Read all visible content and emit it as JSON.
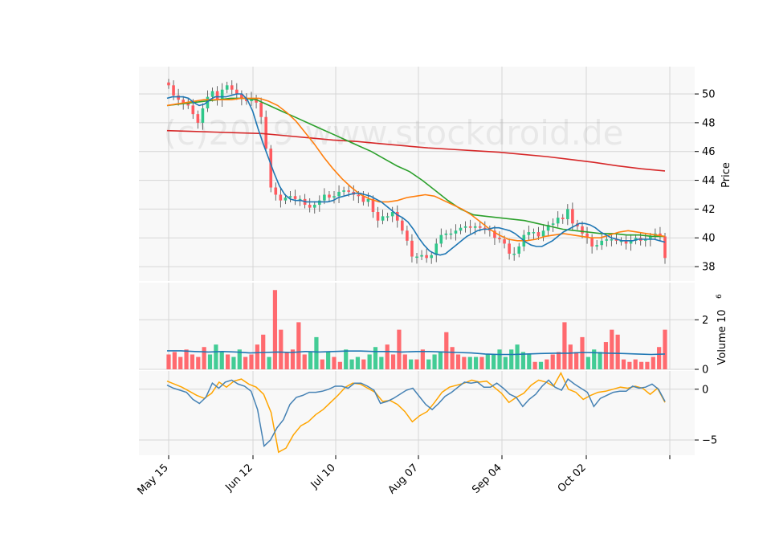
{
  "watermark": "(c)2019 www.stockdroid.de",
  "chart_data": {
    "type": "candlestick",
    "colors": {
      "up": "#2fc78a",
      "down": "#ff5a5f",
      "sma_fast": "#1f77b4",
      "sma_mid": "#ff7f0e",
      "sma_slow": "#2ca02c",
      "sma_long": "#d62728",
      "vol_avg": "#1f77b4",
      "osc_a": "#4682b4",
      "osc_b": "#ffa500"
    },
    "x_ticks": [
      "May 15",
      "Jun 12",
      "Jul 10",
      "Aug 07",
      "Sep 04",
      "Oct 02",
      ""
    ],
    "price_panel": {
      "ylabel": "Price",
      "ylim": [
        37.0,
        51.9
      ],
      "ticks": [
        38,
        40,
        42,
        44,
        46,
        48,
        50
      ]
    },
    "volume_panel": {
      "ylabel": "Volume",
      "exponent": "6",
      "ylim": [
        0,
        3.5
      ],
      "ticks": [
        0,
        2
      ]
    },
    "osc_panel": {
      "ylim": [
        -6.5,
        1.8
      ],
      "ticks": [
        -5,
        0
      ]
    },
    "candles_close": [
      50.6,
      49.9,
      49.6,
      49.4,
      49.2,
      48.6,
      48.0,
      49.0,
      49.8,
      50.2,
      49.6,
      50.3,
      50.6,
      50.3,
      50.0,
      49.7,
      49.5,
      49.7,
      49.4,
      48.4,
      46.2,
      43.5,
      43.0,
      42.6,
      42.8,
      42.9,
      42.7,
      42.7,
      42.3,
      42.1,
      42.3,
      42.6,
      43.0,
      42.8,
      42.9,
      43.2,
      43.3,
      43.2,
      43.0,
      42.9,
      42.5,
      42.7,
      41.8,
      41.2,
      41.5,
      41.5,
      41.8,
      41.2,
      40.5,
      39.8,
      38.7,
      38.7,
      38.8,
      38.6,
      38.8,
      39.6,
      40.2,
      40.3,
      40.3,
      40.5,
      40.7,
      40.8,
      40.7,
      40.8,
      40.7,
      40.6,
      40.5,
      40.0,
      39.9,
      39.6,
      38.9,
      38.9,
      39.4,
      40.2,
      40.4,
      40.4,
      40.1,
      40.5,
      40.9,
      41.0,
      41.4,
      41.3,
      42.0,
      41.0,
      40.8,
      40.3,
      40.0,
      39.4,
      39.5,
      39.8,
      39.9,
      39.9,
      39.8,
      39.8,
      39.6,
      39.8,
      40.0,
      39.8,
      39.9,
      40.1,
      40.3,
      40.1,
      38.6
    ],
    "sma_fast": [
      49.7,
      49.8,
      49.8,
      49.8,
      49.7,
      49.4,
      49.2,
      49.3,
      49.6,
      49.8,
      49.8,
      49.8,
      49.9,
      50.0,
      50.0,
      49.6,
      48.8,
      47.6,
      46.5,
      45.5,
      44.5,
      43.6,
      43.0,
      42.7,
      42.6,
      42.6,
      42.5,
      42.5,
      42.5,
      42.5,
      42.5,
      42.6,
      42.8,
      42.9,
      43.0,
      43.1,
      43.1,
      43.0,
      42.9,
      42.7,
      42.5,
      42.2,
      41.9,
      41.6,
      41.4,
      41.1,
      40.6,
      40.0,
      39.5,
      39.1,
      38.9,
      38.8,
      38.9,
      39.2,
      39.5,
      39.8,
      40.1,
      40.3,
      40.5,
      40.6,
      40.6,
      40.7,
      40.7,
      40.6,
      40.5,
      40.3,
      40.0,
      39.7,
      39.5,
      39.4,
      39.4,
      39.6,
      39.8,
      40.1,
      40.4,
      40.6,
      40.8,
      41.0,
      41.0,
      40.9,
      40.7,
      40.4,
      40.2,
      40.0,
      39.9,
      39.8,
      39.8,
      39.8,
      39.9,
      39.9,
      39.9,
      39.9,
      39.8,
      39.7
    ],
    "sma_mid": [
      49.2,
      49.3,
      49.4,
      49.5,
      49.6,
      49.6,
      49.6,
      49.6,
      49.7,
      49.7,
      49.7,
      49.5,
      49.2,
      48.7,
      48.1,
      47.3,
      46.5,
      45.6,
      44.8,
      44.1,
      43.5,
      43.0,
      42.7,
      42.5,
      42.5,
      42.6,
      42.8,
      42.9,
      43.0,
      42.9,
      42.6,
      42.3,
      42.0,
      41.6,
      41.1,
      40.6,
      40.2,
      39.9,
      39.8,
      39.8,
      39.9,
      40.1,
      40.2,
      40.3,
      40.2,
      40.1,
      40.0,
      40.0,
      40.2,
      40.4,
      40.5,
      40.4,
      40.3,
      40.2,
      40.1
    ],
    "sma_slow": [
      49.2,
      49.3,
      49.4,
      49.5,
      49.6,
      49.7,
      49.7,
      49.6,
      49.2,
      48.8,
      48.4,
      48.0,
      47.6,
      47.2,
      46.8,
      46.4,
      46.0,
      45.5,
      45.0,
      44.6,
      44.0,
      43.3,
      42.6,
      42.0,
      41.6,
      41.5,
      41.4,
      41.3,
      41.2,
      41.0,
      40.8,
      40.6,
      40.5,
      40.4,
      40.3,
      40.3,
      40.2,
      40.2,
      40.1,
      40.1
    ],
    "sma_long": [
      47.45,
      47.4,
      47.35,
      47.3,
      47.25,
      47.1,
      46.95,
      46.8,
      46.7,
      46.55,
      46.4,
      46.25,
      46.15,
      46.05,
      45.95,
      45.8,
      45.65,
      45.45,
      45.25,
      45.0,
      44.8,
      44.65
    ],
    "volume_up": [
      0.6,
      1.0,
      0.7,
      0.5,
      0.8,
      0.5,
      0.7,
      1.3,
      0.7,
      0.8,
      0.4,
      0.5,
      0.6,
      0.9,
      0.5,
      0.4,
      0.4,
      0.6,
      0.7,
      0.5,
      0.5,
      0.6,
      0.6,
      0.8,
      0.5,
      0.8,
      1.0,
      0.7,
      0.6,
      0.3,
      0.5,
      0.8,
      0.7
    ],
    "volume_down": [
      0.6,
      0.7,
      0.5,
      0.8,
      0.6,
      0.5,
      0.9,
      0.6,
      0.5,
      0.6,
      1.0,
      1.4,
      3.2,
      1.6,
      0.7,
      0.8,
      1.9,
      0.6,
      0.4,
      0.5,
      0.3,
      0.4,
      1.0,
      0.6,
      1.6,
      0.6,
      0.4,
      0.8,
      1.5,
      0.9,
      0.6,
      0.5,
      0.5,
      0.3,
      0.4,
      0.6,
      0.7,
      1.9,
      1.0,
      0.7,
      1.3,
      1.1,
      1.6,
      1.4,
      0.4,
      0.3,
      0.4,
      0.3,
      0.3,
      0.5,
      0.9,
      1.6
    ],
    "volume_avg": [
      0.75,
      0.75,
      0.72,
      0.7,
      0.72,
      0.7,
      0.66,
      0.68,
      0.7,
      0.68,
      0.72,
      0.7,
      0.72,
      0.74,
      0.74,
      0.72,
      0.72,
      0.7,
      0.72,
      0.72,
      0.7,
      0.68,
      0.66,
      0.62,
      0.6,
      0.6,
      0.62,
      0.64,
      0.65,
      0.65,
      0.68,
      0.67,
      0.65,
      0.64,
      0.62,
      0.6,
      0.62
    ],
    "osc_a": [
      0.4,
      0.1,
      -0.1,
      -0.3,
      -1.0,
      -1.4,
      -0.8,
      0.6,
      0.1,
      0.7,
      0.9,
      0.5,
      0.3,
      -0.2,
      -2.0,
      -5.6,
      -5.0,
      -3.8,
      -3.0,
      -1.5,
      -0.8,
      -0.6,
      -0.3,
      -0.3,
      -0.2,
      0.0,
      0.3,
      0.3,
      0.1,
      0.6,
      0.6,
      0.3,
      -0.1,
      -1.4,
      -1.2,
      -0.9,
      -0.5,
      -0.1,
      0.1,
      -0.7,
      -1.5,
      -2.0,
      -1.4,
      -0.7,
      -0.3,
      0.2,
      0.7,
      0.6,
      0.7,
      0.2,
      0.2,
      0.6,
      0.1,
      -0.5,
      -0.8,
      -1.7,
      -1.0,
      -0.5,
      0.3,
      0.9,
      0.2,
      -0.1,
      1.0,
      0.5,
      0.1,
      -0.3,
      -1.7,
      -0.9,
      -0.6,
      -0.3,
      -0.2,
      -0.2,
      0.3,
      0.1,
      0.2,
      0.5,
      0.0,
      -1.2
    ],
    "osc_b": [
      0.8,
      0.5,
      0.2,
      -0.2,
      -0.6,
      -0.9,
      -0.4,
      0.7,
      0.2,
      0.8,
      1.0,
      0.5,
      0.2,
      -0.5,
      -2.3,
      -6.2,
      -5.8,
      -4.5,
      -3.6,
      -3.2,
      -2.5,
      -2.0,
      -1.3,
      -0.6,
      0.2,
      0.6,
      0.5,
      0.1,
      -0.3,
      -1.2,
      -1.1,
      -1.5,
      -2.2,
      -3.2,
      -2.6,
      -2.2,
      -1.3,
      -0.3,
      0.2,
      0.4,
      0.6,
      0.9,
      0.7,
      0.8,
      0.2,
      -0.4,
      -1.3,
      -0.8,
      -0.4,
      0.4,
      0.9,
      0.7,
      0.3,
      1.6,
      0.0,
      -0.3,
      -1.0,
      -0.6,
      -0.3,
      -0.2,
      0.0,
      0.2,
      0.1,
      0.3,
      0.1,
      -0.5,
      0.1,
      -1.3
    ]
  }
}
